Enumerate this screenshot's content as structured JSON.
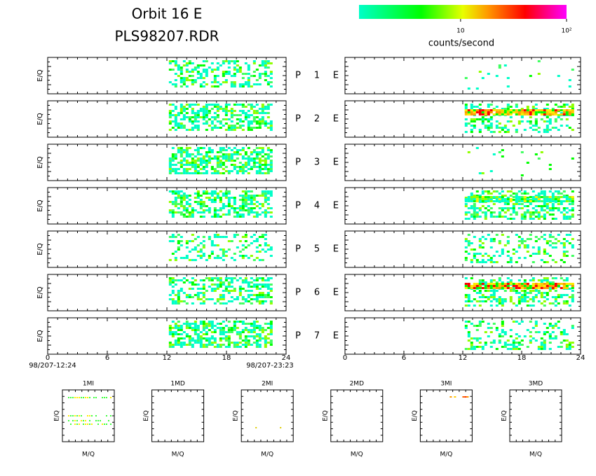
{
  "title": [
    "Orbit 16 E",
    "PLS98207.RDR"
  ],
  "colorbar": {
    "label": "counts/second",
    "log_scale": true,
    "clim": [
      1.1,
      100
    ],
    "ticks": [
      {
        "value": 10,
        "label": "10"
      },
      {
        "value": 100,
        "label": "10²"
      }
    ]
  },
  "ylabel": "E/Q",
  "rows": [
    {
      "prefix": "P",
      "number": 1,
      "suffix": "E"
    },
    {
      "prefix": "P",
      "number": 2,
      "suffix": "E"
    },
    {
      "prefix": "P",
      "number": 3,
      "suffix": "E"
    },
    {
      "prefix": "P",
      "number": 4,
      "suffix": "E"
    },
    {
      "prefix": "P",
      "number": 5,
      "suffix": "E"
    },
    {
      "prefix": "P",
      "number": 6,
      "suffix": "E"
    },
    {
      "prefix": "P",
      "number": 7,
      "suffix": "E"
    }
  ],
  "xlim": [
    0,
    24
  ],
  "xticks": [
    0,
    6,
    12,
    18,
    24
  ],
  "start": "98/207-12:24",
  "end": "98/207-23:23",
  "small_panels": [
    {
      "title": "1MI"
    },
    {
      "title": "1MD"
    },
    {
      "title": "2MI"
    },
    {
      "title": "2MD"
    },
    {
      "title": "3MI"
    },
    {
      "title": "3MD"
    }
  ],
  "small_xlabel": "M/Q",
  "small_ylabel": "E/Q"
}
